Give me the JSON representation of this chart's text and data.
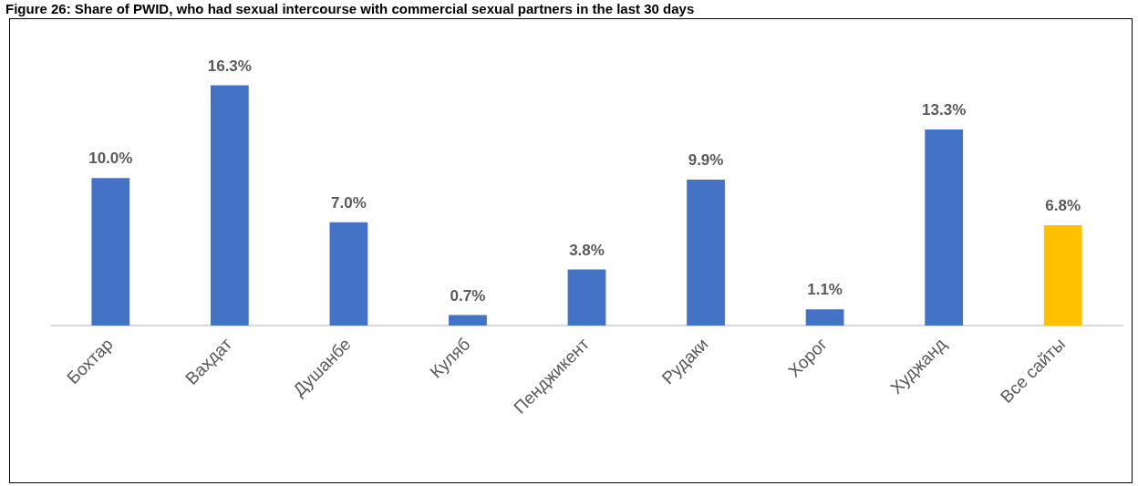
{
  "chart_data": {
    "type": "bar",
    "title": "Figure 26: Share of PWID, who had sexual intercourse with commercial sexual partners in the last 30 days",
    "categories": [
      "Бохтар",
      "Вахдат",
      "Душанбе",
      "Куляб",
      "Пенджикент",
      "Рудаки",
      "Хорог",
      "Худжанд",
      "Все сайты"
    ],
    "values": [
      10.0,
      16.3,
      7.0,
      0.7,
      3.8,
      9.9,
      1.1,
      13.3,
      6.8
    ],
    "colors": [
      "#4472c4",
      "#4472c4",
      "#4472c4",
      "#4472c4",
      "#4472c4",
      "#4472c4",
      "#4472c4",
      "#4472c4",
      "#ffc000"
    ],
    "value_labels": [
      "10.0%",
      "16.3%",
      "7.0%",
      "0.7%",
      "3.8%",
      "9.9%",
      "1.1%",
      "13.3%",
      "6.8%"
    ],
    "grid": false,
    "legend": false,
    "tick_labels": "x"
  }
}
